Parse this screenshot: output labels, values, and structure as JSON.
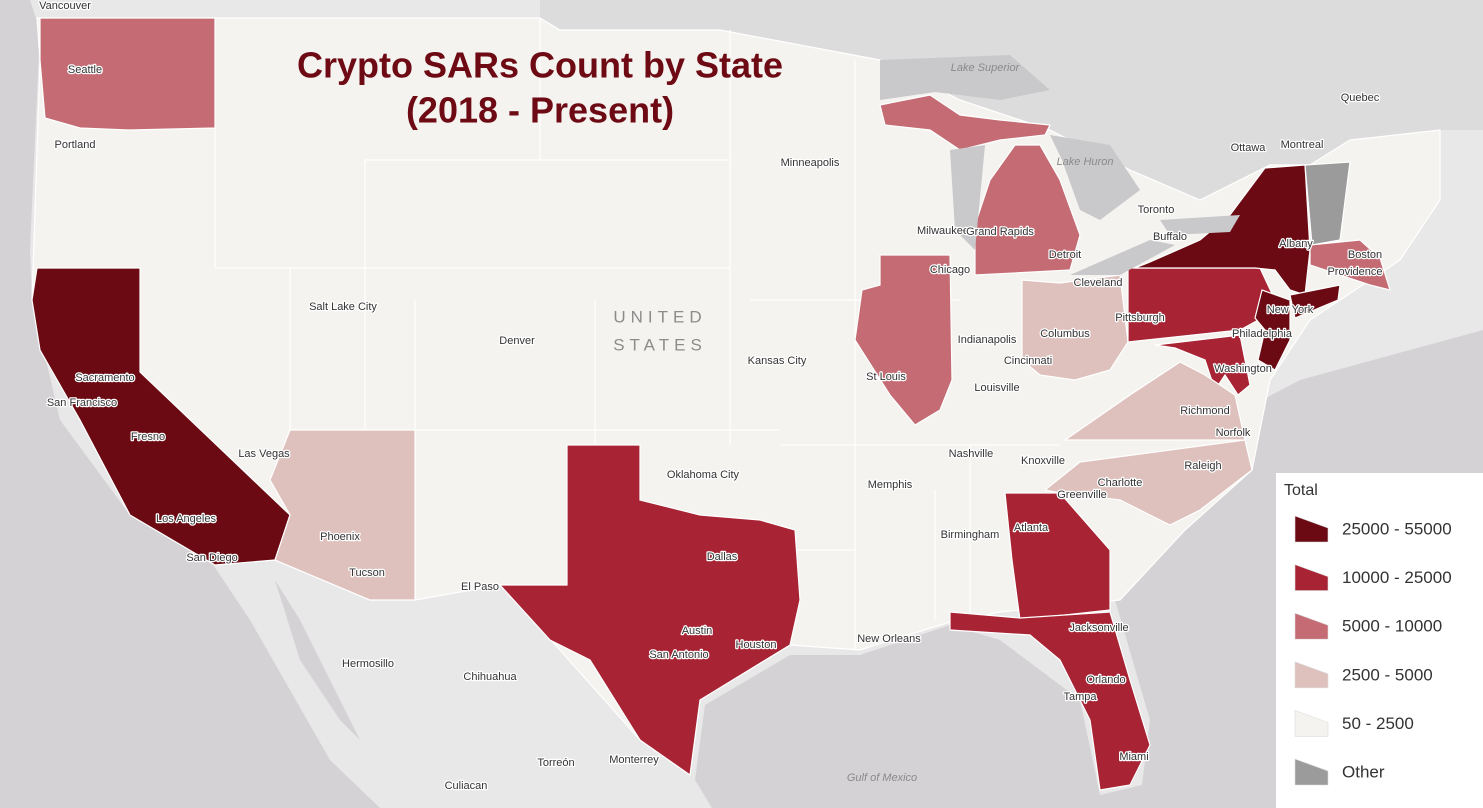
{
  "title": [
    "Crypto SARs Count by State",
    "(2018 - Present)"
  ],
  "country_label": [
    "UNITED",
    "STATES"
  ],
  "water_labels": [
    "Lake Superior",
    "Lake Huron",
    "Gulf of Mexico"
  ],
  "cities": [
    "Vancouver",
    "Seattle",
    "Portland",
    "Minneapolis",
    "Quebec",
    "Ottawa",
    "Montreal",
    "Toronto",
    "Buffalo",
    "Albany",
    "Boston",
    "Providence",
    "Milwaukee",
    "Grand Rapids",
    "Detroit",
    "Chicago",
    "Cleveland",
    "Salt Lake City",
    "Denver",
    "Pittsburgh",
    "New York",
    "Philadelphia",
    "Columbus",
    "Indianapolis",
    "Kansas City",
    "Cincinnati",
    "St Louis",
    "Washington",
    "Louisville",
    "Sacramento",
    "San Francisco",
    "Richmond",
    "Fresno",
    "Norfolk",
    "Nashville",
    "Las Vegas",
    "Knoxville",
    "Raleigh",
    "Oklahoma City",
    "Memphis",
    "Charlotte",
    "Greenville",
    "Los Angeles",
    "Atlanta",
    "Birmingham",
    "Phoenix",
    "Dallas",
    "San Diego",
    "Tucson",
    "El Paso",
    "Jacksonville",
    "Austin",
    "New Orleans",
    "Houston",
    "San Antonio",
    "Hermosillo",
    "Chihuahua",
    "Orlando",
    "Tampa",
    "Miami",
    "Torreón",
    "Monterrey",
    "Culiacan"
  ],
  "legend": {
    "title": "Total",
    "items": [
      {
        "label": "25000 - 55000",
        "color": "#6b0a13"
      },
      {
        "label": "10000 - 25000",
        "color": "#a82334"
      },
      {
        "label": "5000 - 10000",
        "color": "#c46b73"
      },
      {
        "label": "2500 - 5000",
        "color": "#dec1bd"
      },
      {
        "label": "50 - 2500",
        "color": "#f4f3ef"
      },
      {
        "label": "Other",
        "color": "#9b9b9b"
      }
    ]
  }
}
